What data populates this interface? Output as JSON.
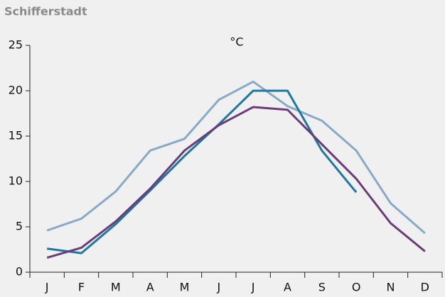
{
  "chart_data": {
    "type": "line",
    "title": "Schifferstadt",
    "unit_label": "°C",
    "categories": [
      "J",
      "F",
      "M",
      "A",
      "M",
      "J",
      "J",
      "A",
      "S",
      "O",
      "N",
      "D"
    ],
    "series": [
      {
        "color": "#86aac8",
        "values": [
          4.6,
          5.9,
          8.9,
          13.4,
          14.7,
          19,
          21,
          18.3,
          16.7,
          13.4,
          7.6,
          4.3
        ]
      },
      {
        "color": "#1f78a0",
        "values": [
          2.6,
          2.1,
          5.3,
          9,
          12.8,
          16.3,
          20,
          20,
          13.4,
          8.8,
          null,
          null
        ]
      },
      {
        "color": "#6a3d7a",
        "values": [
          1.6,
          2.7,
          5.6,
          9.2,
          13.4,
          16.2,
          18.2,
          17.9,
          14.1,
          10.3,
          5.4,
          2.3
        ]
      }
    ],
    "ylim": [
      0,
      25
    ],
    "yticks": [
      0,
      5,
      10,
      15,
      20,
      25
    ],
    "grid": false
  }
}
